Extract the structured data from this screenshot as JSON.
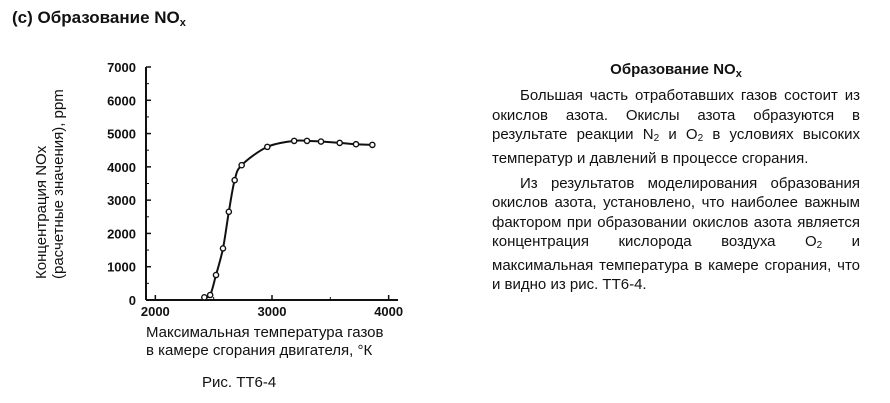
{
  "heading": {
    "prefix": "(c) Образование NO",
    "sub": "x"
  },
  "figure": {
    "ylabel_line1": "Концентрация NOx",
    "ylabel_line2": "(расчетные значения), ppm",
    "xlabel_line1": "Максимальная температура газов",
    "xlabel_line2": "в камере сгорания двигателя, °К",
    "caption": "Рис. TT6-4"
  },
  "chart_data": {
    "type": "line",
    "xlim": [
      1920,
      4080
    ],
    "ylim": [
      0,
      7000
    ],
    "xticks": [
      2000,
      3000,
      4000
    ],
    "yticks": [
      0,
      1000,
      2000,
      3000,
      4000,
      5000,
      6000,
      7000
    ],
    "grid": false,
    "series": [
      {
        "x": [
          2420,
          2470,
          2520,
          2580,
          2630,
          2680,
          2740,
          2960,
          3190,
          3300,
          3420,
          3580,
          3720,
          3860
        ],
        "y": [
          80,
          150,
          750,
          1550,
          2650,
          3600,
          4050,
          4600,
          4780,
          4780,
          4760,
          4720,
          4680,
          4660
        ]
      }
    ]
  },
  "side": {
    "title_prefix": "Образование NO",
    "title_sub": "x",
    "p1_part1": "Большая часть отработавших газов состоит из окислов азота. Окислы азота образуются в результате реакции N",
    "p1_sub1": "2",
    "p1_part2": " и O",
    "p1_sub2": "2",
    "p1_part3": " в условиях высоких температур и давлений в процессе сгорания.",
    "p2_part1": "Из результатов моделирования образования окислов азота, установлено, что наиболее важным фактором при образовании окислов азота является концентрация кислорода воздуха O",
    "p2_sub1": "2",
    "p2_part2": " и максимальная температура в камере сгорания, что и видно из рис. TT6-4."
  }
}
